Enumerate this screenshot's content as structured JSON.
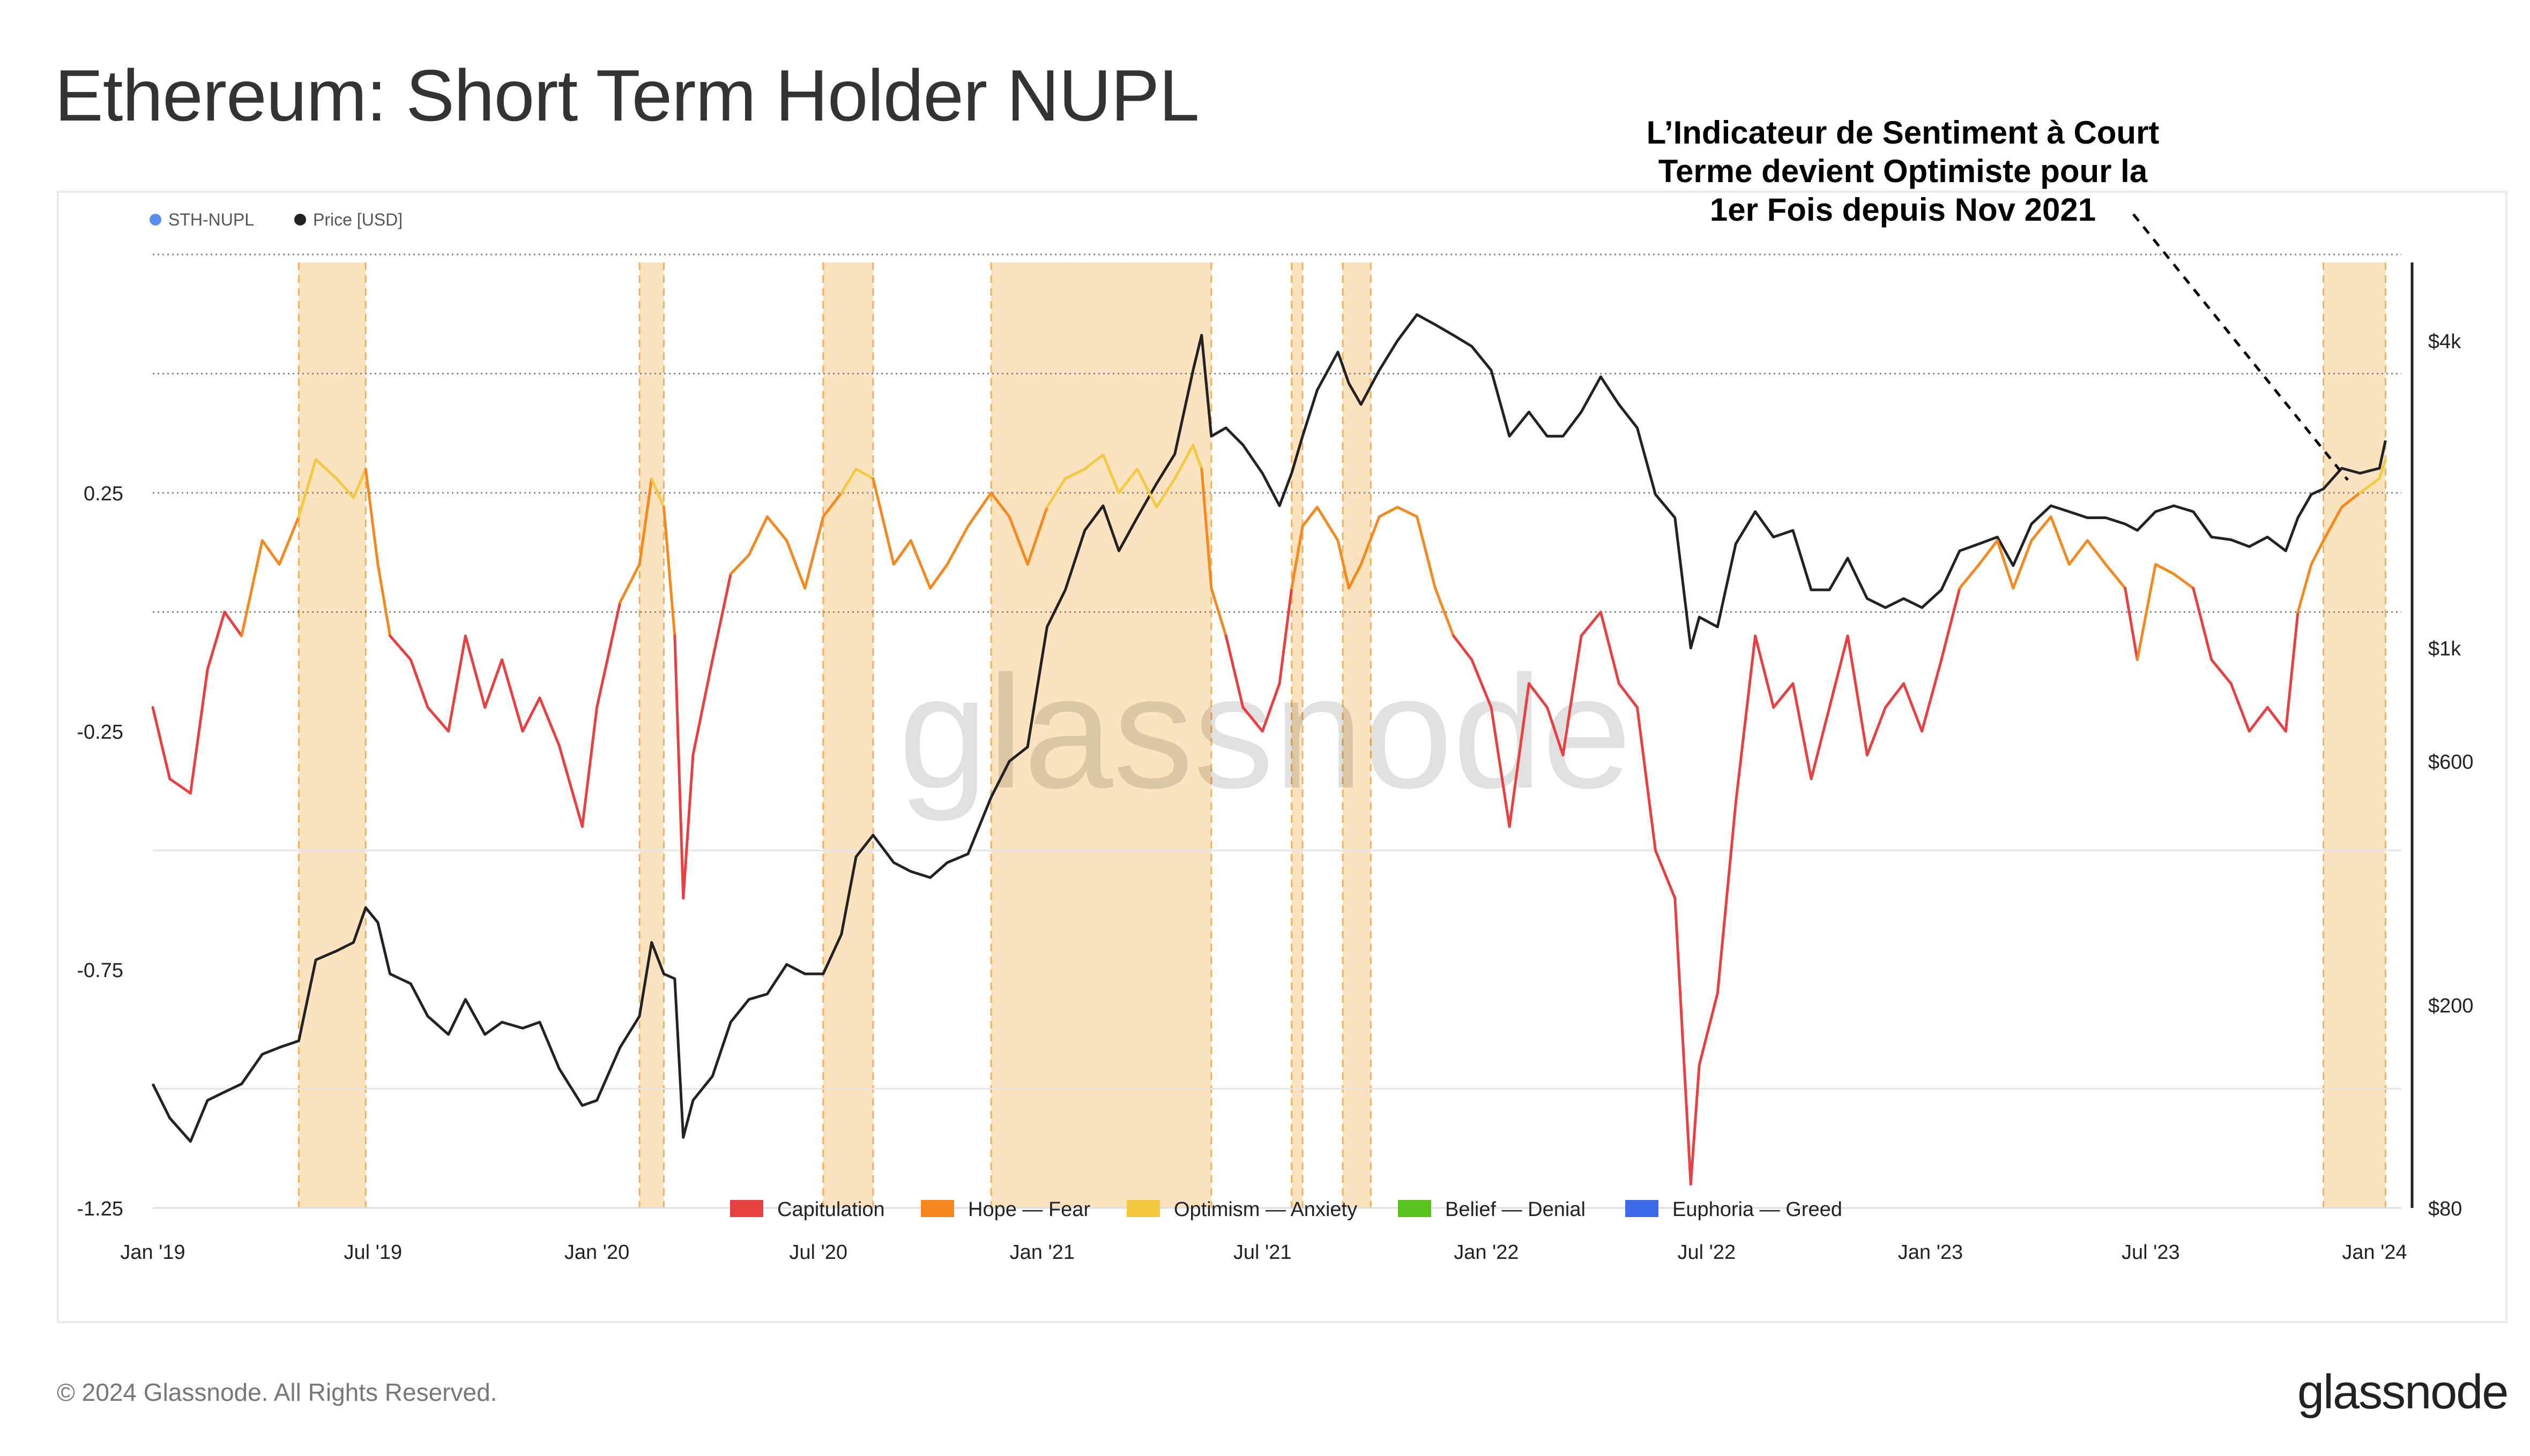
{
  "title": "Ethereum: Short Term Holder NUPL",
  "callout": {
    "lines": [
      "L’Indicateur de Sentiment à Court",
      "Terme devient Optimiste pour la",
      "1er Fois depuis Nov 2021"
    ]
  },
  "copyright": "© 2024 Glassnode. All Rights Reserved.",
  "brand": "glassnode",
  "watermark": "glassnode",
  "chart_data": {
    "type": "line",
    "series_legend": [
      {
        "name": "STH-NUPL",
        "color": "#5b8def"
      },
      {
        "name": "Price [USD]",
        "color": "#222222"
      }
    ],
    "zone_legend": [
      {
        "name": "Capitulation",
        "color": "#e84040"
      },
      {
        "name": "Hope — Fear",
        "color": "#f5891f"
      },
      {
        "name": "Optimism — Anxiety",
        "color": "#f5c842"
      },
      {
        "name": "Belief — Denial",
        "color": "#56c41d"
      },
      {
        "name": "Euphoria — Greed",
        "color": "#3d6be8"
      }
    ],
    "x_ticks": [
      "Jan '19",
      "Jul '19",
      "Jan '20",
      "Jul '20",
      "Jan '21",
      "Jul '21",
      "Jan '22",
      "Jul '22",
      "Jan '23",
      "Jul '23",
      "Jan '24"
    ],
    "y_left_ticks": [
      "0.25",
      "-0.25",
      "-0.75",
      "-1.25"
    ],
    "y_left_range": [
      -1.25,
      0.75
    ],
    "y_right_ticks": [
      "$4k",
      "$1k",
      "$600",
      "$200",
      "$80"
    ],
    "y_right_scale": "log",
    "y_right_range": [
      80,
      6000
    ],
    "optimism_periods": [
      [
        "2019-05-01",
        "2019-06-25"
      ],
      [
        "2020-02-05",
        "2020-02-25"
      ],
      [
        "2020-07-05",
        "2020-08-15"
      ],
      [
        "2020-11-20",
        "2021-05-20"
      ],
      [
        "2021-07-25",
        "2021-08-03"
      ],
      [
        "2021-09-05",
        "2021-09-28"
      ],
      [
        "2023-11-20",
        "2024-01-10"
      ]
    ],
    "sth_nupl": [
      [
        "2019-01-01",
        -0.2
      ],
      [
        "2019-01-15",
        -0.35
      ],
      [
        "2019-02-01",
        -0.38
      ],
      [
        "2019-02-15",
        -0.12
      ],
      [
        "2019-03-01",
        0.0
      ],
      [
        "2019-03-15",
        -0.05
      ],
      [
        "2019-04-01",
        0.15
      ],
      [
        "2019-04-15",
        0.1
      ],
      [
        "2019-05-01",
        0.2
      ],
      [
        "2019-05-15",
        0.32
      ],
      [
        "2019-06-01",
        0.28
      ],
      [
        "2019-06-15",
        0.24
      ],
      [
        "2019-06-25",
        0.3
      ],
      [
        "2019-07-05",
        0.1
      ],
      [
        "2019-07-15",
        -0.05
      ],
      [
        "2019-08-01",
        -0.1
      ],
      [
        "2019-08-15",
        -0.2
      ],
      [
        "2019-09-01",
        -0.25
      ],
      [
        "2019-09-15",
        -0.05
      ],
      [
        "2019-10-01",
        -0.2
      ],
      [
        "2019-10-15",
        -0.1
      ],
      [
        "2019-11-01",
        -0.25
      ],
      [
        "2019-11-15",
        -0.18
      ],
      [
        "2019-12-01",
        -0.28
      ],
      [
        "2019-12-20",
        -0.45
      ],
      [
        "2020-01-01",
        -0.2
      ],
      [
        "2020-01-20",
        0.02
      ],
      [
        "2020-02-05",
        0.1
      ],
      [
        "2020-02-15",
        0.28
      ],
      [
        "2020-02-25",
        0.22
      ],
      [
        "2020-03-05",
        -0.05
      ],
      [
        "2020-03-12",
        -0.6
      ],
      [
        "2020-03-20",
        -0.3
      ],
      [
        "2020-04-05",
        -0.1
      ],
      [
        "2020-04-20",
        0.08
      ],
      [
        "2020-05-05",
        0.12
      ],
      [
        "2020-05-20",
        0.2
      ],
      [
        "2020-06-05",
        0.15
      ],
      [
        "2020-06-20",
        0.05
      ],
      [
        "2020-07-05",
        0.2
      ],
      [
        "2020-07-20",
        0.25
      ],
      [
        "2020-08-01",
        0.3
      ],
      [
        "2020-08-15",
        0.28
      ],
      [
        "2020-09-01",
        0.1
      ],
      [
        "2020-09-15",
        0.15
      ],
      [
        "2020-10-01",
        0.05
      ],
      [
        "2020-10-15",
        0.1
      ],
      [
        "2020-11-01",
        0.18
      ],
      [
        "2020-11-20",
        0.25
      ],
      [
        "2020-12-05",
        0.2
      ],
      [
        "2020-12-20",
        0.1
      ],
      [
        "2021-01-05",
        0.22
      ],
      [
        "2021-01-20",
        0.28
      ],
      [
        "2021-02-05",
        0.3
      ],
      [
        "2021-02-20",
        0.33
      ],
      [
        "2021-03-05",
        0.25
      ],
      [
        "2021-03-20",
        0.3
      ],
      [
        "2021-04-05",
        0.22
      ],
      [
        "2021-04-20",
        0.28
      ],
      [
        "2021-05-05",
        0.35
      ],
      [
        "2021-05-12",
        0.3
      ],
      [
        "2021-05-20",
        0.05
      ],
      [
        "2021-06-01",
        -0.05
      ],
      [
        "2021-06-15",
        -0.2
      ],
      [
        "2021-07-01",
        -0.25
      ],
      [
        "2021-07-15",
        -0.15
      ],
      [
        "2021-07-25",
        0.05
      ],
      [
        "2021-08-03",
        0.18
      ],
      [
        "2021-08-15",
        0.22
      ],
      [
        "2021-09-01",
        0.15
      ],
      [
        "2021-09-10",
        0.05
      ],
      [
        "2021-09-20",
        0.1
      ],
      [
        "2021-10-05",
        0.2
      ],
      [
        "2021-10-20",
        0.22
      ],
      [
        "2021-11-05",
        0.2
      ],
      [
        "2021-11-20",
        0.05
      ],
      [
        "2021-12-05",
        -0.05
      ],
      [
        "2021-12-20",
        -0.1
      ],
      [
        "2022-01-05",
        -0.2
      ],
      [
        "2022-01-20",
        -0.45
      ],
      [
        "2022-02-05",
        -0.15
      ],
      [
        "2022-02-20",
        -0.2
      ],
      [
        "2022-03-05",
        -0.3
      ],
      [
        "2022-03-20",
        -0.05
      ],
      [
        "2022-04-05",
        0.0
      ],
      [
        "2022-04-20",
        -0.15
      ],
      [
        "2022-05-05",
        -0.2
      ],
      [
        "2022-05-20",
        -0.5
      ],
      [
        "2022-06-05",
        -0.6
      ],
      [
        "2022-06-18",
        -1.2
      ],
      [
        "2022-06-25",
        -0.95
      ],
      [
        "2022-07-10",
        -0.8
      ],
      [
        "2022-07-25",
        -0.4
      ],
      [
        "2022-08-10",
        -0.05
      ],
      [
        "2022-08-25",
        -0.2
      ],
      [
        "2022-09-10",
        -0.15
      ],
      [
        "2022-09-25",
        -0.35
      ],
      [
        "2022-10-10",
        -0.2
      ],
      [
        "2022-10-25",
        -0.05
      ],
      [
        "2022-11-10",
        -0.3
      ],
      [
        "2022-11-25",
        -0.2
      ],
      [
        "2022-12-10",
        -0.15
      ],
      [
        "2022-12-25",
        -0.25
      ],
      [
        "2023-01-10",
        -0.1
      ],
      [
        "2023-01-25",
        0.05
      ],
      [
        "2023-02-10",
        0.1
      ],
      [
        "2023-02-25",
        0.15
      ],
      [
        "2023-03-10",
        0.05
      ],
      [
        "2023-03-25",
        0.15
      ],
      [
        "2023-04-10",
        0.2
      ],
      [
        "2023-04-25",
        0.1
      ],
      [
        "2023-05-10",
        0.15
      ],
      [
        "2023-05-25",
        0.1
      ],
      [
        "2023-06-10",
        0.05
      ],
      [
        "2023-06-20",
        -0.1
      ],
      [
        "2023-07-05",
        0.1
      ],
      [
        "2023-07-20",
        0.08
      ],
      [
        "2023-08-05",
        0.05
      ],
      [
        "2023-08-20",
        -0.1
      ],
      [
        "2023-09-05",
        -0.15
      ],
      [
        "2023-09-20",
        -0.25
      ],
      [
        "2023-10-05",
        -0.2
      ],
      [
        "2023-10-20",
        -0.25
      ],
      [
        "2023-10-30",
        0.0
      ],
      [
        "2023-11-10",
        0.1
      ],
      [
        "2023-11-20",
        0.15
      ],
      [
        "2023-12-05",
        0.22
      ],
      [
        "2023-12-20",
        0.25
      ],
      [
        "2024-01-05",
        0.28
      ],
      [
        "2024-01-10",
        0.32
      ]
    ],
    "price_usd": [
      [
        "2019-01-01",
        140
      ],
      [
        "2019-01-15",
        120
      ],
      [
        "2019-02-01",
        108
      ],
      [
        "2019-02-15",
        130
      ],
      [
        "2019-03-01",
        135
      ],
      [
        "2019-03-15",
        140
      ],
      [
        "2019-04-01",
        160
      ],
      [
        "2019-04-15",
        165
      ],
      [
        "2019-05-01",
        170
      ],
      [
        "2019-05-15",
        245
      ],
      [
        "2019-06-01",
        255
      ],
      [
        "2019-06-15",
        265
      ],
      [
        "2019-06-25",
        310
      ],
      [
        "2019-07-05",
        290
      ],
      [
        "2019-07-15",
        230
      ],
      [
        "2019-08-01",
        220
      ],
      [
        "2019-08-15",
        190
      ],
      [
        "2019-09-01",
        175
      ],
      [
        "2019-09-15",
        205
      ],
      [
        "2019-10-01",
        175
      ],
      [
        "2019-10-15",
        185
      ],
      [
        "2019-11-01",
        180
      ],
      [
        "2019-11-15",
        185
      ],
      [
        "2019-12-01",
        150
      ],
      [
        "2019-12-20",
        127
      ],
      [
        "2020-01-01",
        130
      ],
      [
        "2020-01-20",
        165
      ],
      [
        "2020-02-05",
        190
      ],
      [
        "2020-02-15",
        265
      ],
      [
        "2020-02-25",
        230
      ],
      [
        "2020-03-05",
        225
      ],
      [
        "2020-03-12",
        110
      ],
      [
        "2020-03-20",
        130
      ],
      [
        "2020-04-05",
        145
      ],
      [
        "2020-04-20",
        185
      ],
      [
        "2020-05-05",
        205
      ],
      [
        "2020-05-20",
        210
      ],
      [
        "2020-06-05",
        240
      ],
      [
        "2020-06-20",
        230
      ],
      [
        "2020-07-05",
        230
      ],
      [
        "2020-07-20",
        275
      ],
      [
        "2020-08-01",
        390
      ],
      [
        "2020-08-15",
        430
      ],
      [
        "2020-09-01",
        380
      ],
      [
        "2020-09-15",
        365
      ],
      [
        "2020-10-01",
        355
      ],
      [
        "2020-10-15",
        380
      ],
      [
        "2020-11-01",
        395
      ],
      [
        "2020-11-20",
        510
      ],
      [
        "2020-12-05",
        600
      ],
      [
        "2020-12-20",
        640
      ],
      [
        "2021-01-05",
        1100
      ],
      [
        "2021-01-20",
        1300
      ],
      [
        "2021-02-05",
        1700
      ],
      [
        "2021-02-20",
        1900
      ],
      [
        "2021-03-05",
        1550
      ],
      [
        "2021-03-20",
        1800
      ],
      [
        "2021-04-05",
        2100
      ],
      [
        "2021-04-20",
        2400
      ],
      [
        "2021-05-05",
        3500
      ],
      [
        "2021-05-12",
        4100
      ],
      [
        "2021-05-20",
        2600
      ],
      [
        "2021-06-01",
        2700
      ],
      [
        "2021-06-15",
        2500
      ],
      [
        "2021-07-01",
        2200
      ],
      [
        "2021-07-15",
        1900
      ],
      [
        "2021-07-25",
        2200
      ],
      [
        "2021-08-03",
        2600
      ],
      [
        "2021-08-15",
        3200
      ],
      [
        "2021-09-01",
        3800
      ],
      [
        "2021-09-10",
        3300
      ],
      [
        "2021-09-20",
        3000
      ],
      [
        "2021-10-05",
        3500
      ],
      [
        "2021-10-20",
        4000
      ],
      [
        "2021-11-05",
        4500
      ],
      [
        "2021-11-20",
        4300
      ],
      [
        "2021-12-05",
        4100
      ],
      [
        "2021-12-20",
        3900
      ],
      [
        "2022-01-05",
        3500
      ],
      [
        "2022-01-20",
        2600
      ],
      [
        "2022-02-05",
        2900
      ],
      [
        "2022-02-20",
        2600
      ],
      [
        "2022-03-05",
        2600
      ],
      [
        "2022-03-20",
        2900
      ],
      [
        "2022-04-05",
        3400
      ],
      [
        "2022-04-20",
        3000
      ],
      [
        "2022-05-05",
        2700
      ],
      [
        "2022-05-20",
        2000
      ],
      [
        "2022-06-05",
        1800
      ],
      [
        "2022-06-18",
        1000
      ],
      [
        "2022-06-25",
        1150
      ],
      [
        "2022-07-10",
        1100
      ],
      [
        "2022-07-25",
        1600
      ],
      [
        "2022-08-10",
        1850
      ],
      [
        "2022-08-25",
        1650
      ],
      [
        "2022-09-10",
        1700
      ],
      [
        "2022-09-25",
        1300
      ],
      [
        "2022-10-10",
        1300
      ],
      [
        "2022-10-25",
        1500
      ],
      [
        "2022-11-10",
        1250
      ],
      [
        "2022-11-25",
        1200
      ],
      [
        "2022-12-10",
        1250
      ],
      [
        "2022-12-25",
        1200
      ],
      [
        "2023-01-10",
        1300
      ],
      [
        "2023-01-25",
        1550
      ],
      [
        "2023-02-10",
        1600
      ],
      [
        "2023-02-25",
        1650
      ],
      [
        "2023-03-10",
        1450
      ],
      [
        "2023-03-25",
        1750
      ],
      [
        "2023-04-10",
        1900
      ],
      [
        "2023-04-25",
        1850
      ],
      [
        "2023-05-10",
        1800
      ],
      [
        "2023-05-25",
        1800
      ],
      [
        "2023-06-10",
        1750
      ],
      [
        "2023-06-20",
        1700
      ],
      [
        "2023-07-05",
        1850
      ],
      [
        "2023-07-20",
        1900
      ],
      [
        "2023-08-05",
        1850
      ],
      [
        "2023-08-20",
        1650
      ],
      [
        "2023-09-05",
        1630
      ],
      [
        "2023-09-20",
        1580
      ],
      [
        "2023-10-05",
        1650
      ],
      [
        "2023-10-20",
        1550
      ],
      [
        "2023-10-30",
        1800
      ],
      [
        "2023-11-10",
        2000
      ],
      [
        "2023-11-20",
        2050
      ],
      [
        "2023-12-05",
        2250
      ],
      [
        "2023-12-20",
        2200
      ],
      [
        "2024-01-05",
        2250
      ],
      [
        "2024-01-10",
        2550
      ]
    ]
  }
}
